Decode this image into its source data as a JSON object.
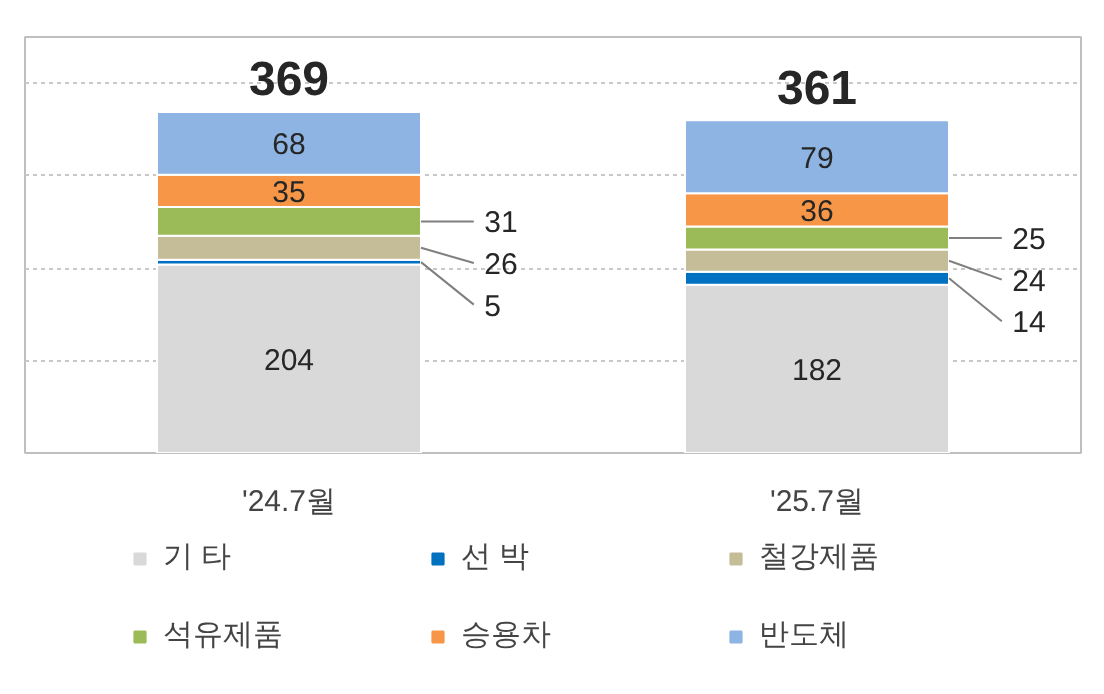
{
  "chart_data": {
    "type": "bar",
    "stacked": true,
    "categories": [
      "'24.7월",
      "'25.7월"
    ],
    "series": [
      {
        "name": "기 타",
        "color": "#d9d9d9",
        "values": [
          204,
          182
        ]
      },
      {
        "name": "선 박",
        "color": "#0070c0",
        "values": [
          5,
          14
        ]
      },
      {
        "name": "철강제품",
        "color": "#c4bd97",
        "values": [
          26,
          24
        ]
      },
      {
        "name": "석유제품",
        "color": "#9bbb59",
        "values": [
          31,
          25
        ]
      },
      {
        "name": "승용차",
        "color": "#f79646",
        "values": [
          35,
          36
        ]
      },
      {
        "name": "반도체",
        "color": "#8db4e2",
        "values": [
          68,
          79
        ]
      }
    ],
    "ylim": [
      0,
      450
    ],
    "totals": [
      "369",
      "361"
    ],
    "data_labels": true,
    "grid": "y",
    "legend": "bottom"
  }
}
